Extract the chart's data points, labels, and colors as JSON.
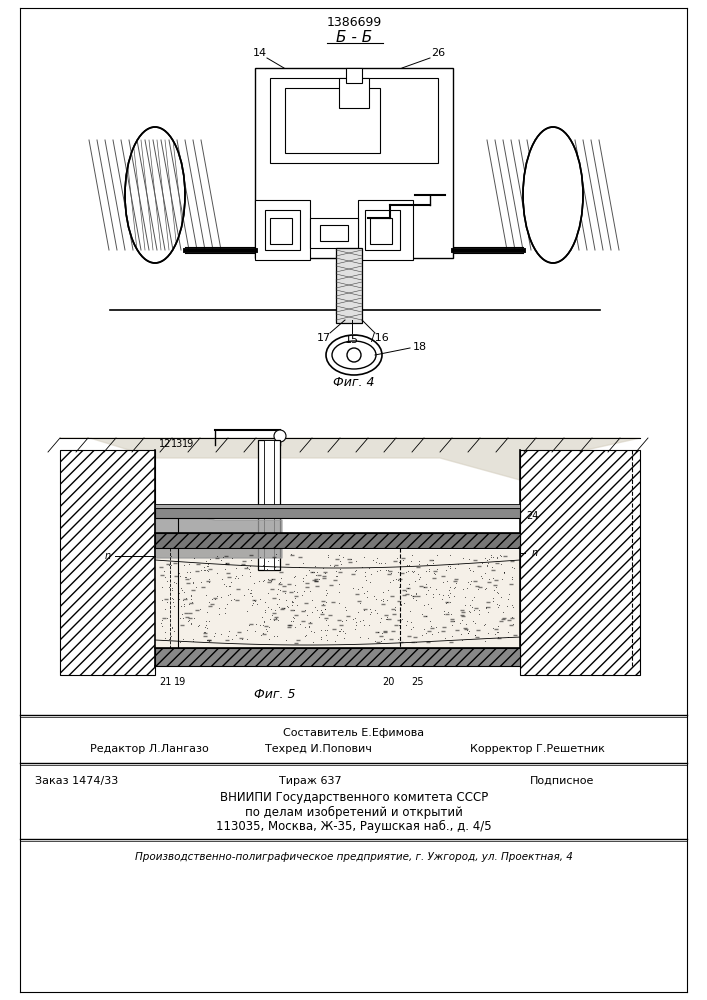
{
  "patent_number": "1386699",
  "section_label": "Б - Б",
  "fig4_label": "Фиг. 4",
  "fig5_label": "Фиг. 5",
  "bg_color": "#ffffff",
  "line_color": "#000000",
  "footer_line1": "Составитель Е.Ефимова",
  "footer_line2_left": "Редактор Л.Лангазо",
  "footer_line2_mid": "Техред И.Попович",
  "footer_line2_right": "Корректор Г.Решетник",
  "footer_line3_left": "Заказ 1474/33",
  "footer_line3_mid": "Тираж 637",
  "footer_line3_right": "Подписное",
  "footer_line4": "ВНИИПИ Государственного комитета СССР",
  "footer_line5": "по делам изобретений и открытий",
  "footer_line6": "113035, Москва, Ж-35, Раушская наб., д. 4/5",
  "footer_line7": "Производственно-полиграфическое предприятие, г. Ужгород, ул. Проектная, 4"
}
